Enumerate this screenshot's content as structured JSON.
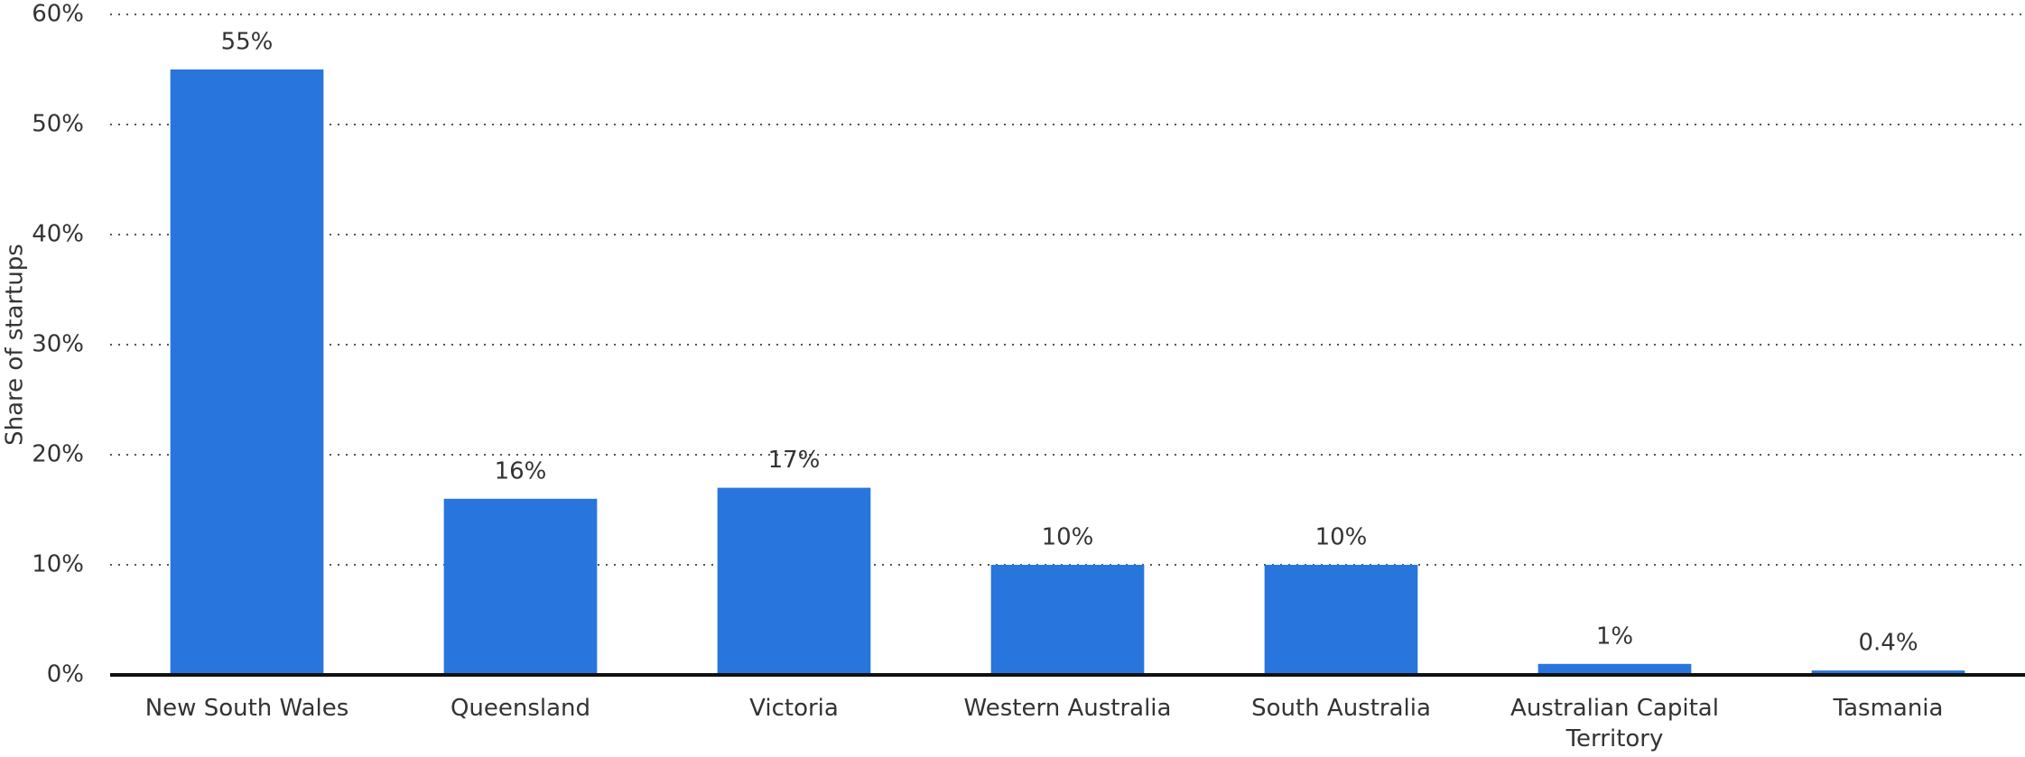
{
  "chart_data": {
    "type": "bar",
    "y_label": "Share of startups",
    "categories": [
      "New South Wales",
      "Queensland",
      "Victoria",
      "Western Australia",
      "South Australia",
      "Australian Capital Territory",
      "Tasmania"
    ],
    "values": [
      55,
      16,
      17,
      10,
      10,
      1,
      0.4
    ],
    "value_labels": [
      "55%",
      "16%",
      "17%",
      "10%",
      "10%",
      "1%",
      "0.4%"
    ],
    "color": "#2876dd",
    "ylim": [
      0,
      60
    ],
    "yticks": [
      {
        "value": 0,
        "label": "0%"
      },
      {
        "value": 10,
        "label": "10%"
      },
      {
        "value": 20,
        "label": "20%"
      },
      {
        "value": 30,
        "label": "30%"
      },
      {
        "value": 40,
        "label": "40%"
      },
      {
        "value": 50,
        "label": "50%"
      },
      {
        "value": 60,
        "label": "60%"
      }
    ],
    "grid": true
  }
}
